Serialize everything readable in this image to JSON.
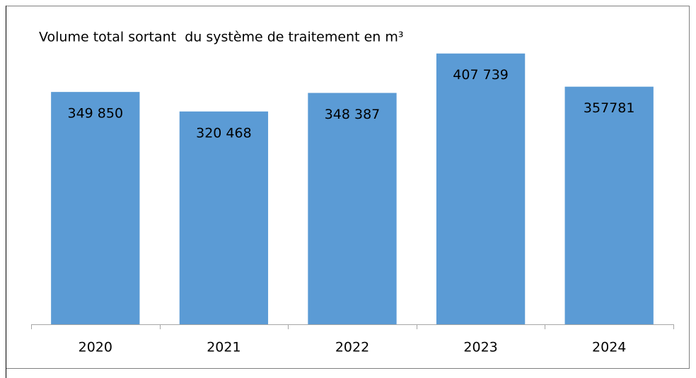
{
  "chart_data": {
    "type": "bar",
    "title": "Volume total sortant  du système de traitement en m³",
    "categories": [
      "2020",
      "2021",
      "2022",
      "2023",
      "2024"
    ],
    "values": [
      349850,
      320468,
      348387,
      407739,
      357781
    ],
    "value_labels": [
      "349 850",
      "320 468",
      "348 387",
      "407 739",
      "357781"
    ],
    "color": "#5b9bd5",
    "ylim": [
      0,
      450000
    ]
  }
}
